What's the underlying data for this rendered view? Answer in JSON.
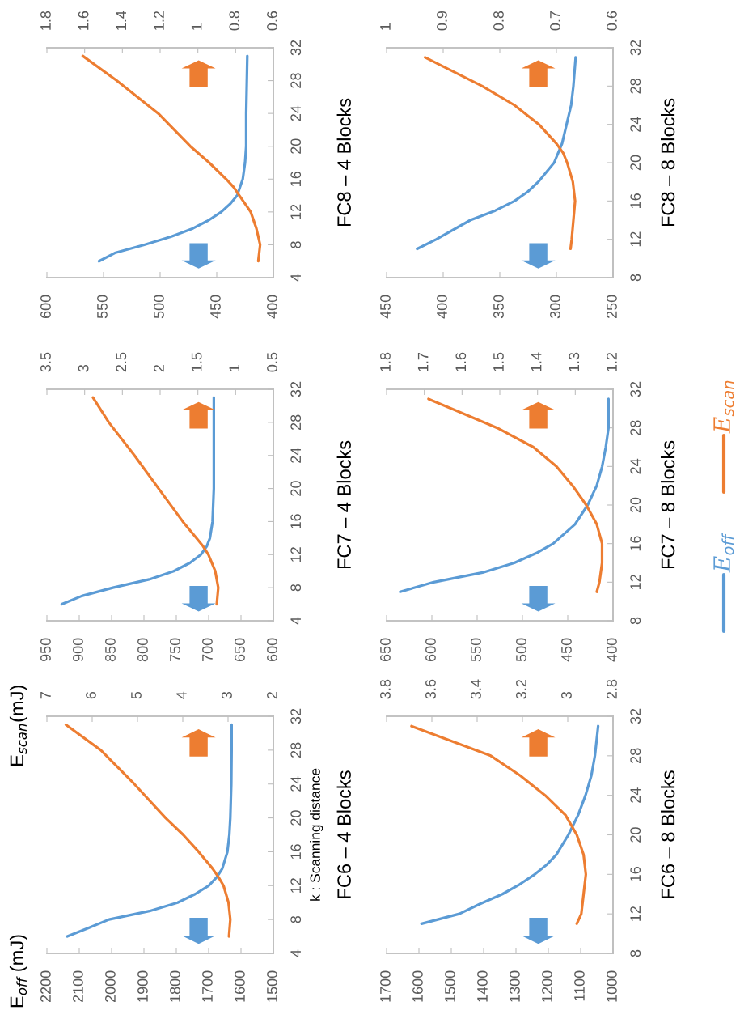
{
  "chart_data": [
    {
      "type": "line",
      "orientation": "horizontal",
      "annotations": [
        "FC6 – 4 Blocks",
        "E$_{off}$ (mJ)"
      ],
      "ylabel": "k : Scanning distance",
      "x2label": "E$_{scan}$(mJ)",
      "legend": "right",
      "grid": false,
      "marker": "none",
      "line_style": "solid",
      "ylim": [
        4,
        32
      ],
      "yticks": [
        4,
        8,
        12,
        16,
        20,
        24,
        28,
        32
      ],
      "xlim": [
        2200,
        1500
      ],
      "xticks": [
        2200,
        2100,
        2000,
        1900,
        1800,
        1700,
        1600,
        1500
      ],
      "x2lim": [
        7,
        2
      ],
      "x2ticks": [
        7,
        6,
        5,
        4,
        3,
        2
      ],
      "series": [
        {
          "name": "E$_{off}$",
          "color": "#5b9bd5",
          "x": [
            6,
            7,
            8,
            9,
            10,
            11,
            12,
            13,
            14,
            16,
            18,
            20,
            24,
            28,
            31
          ],
          "values": [
            2137,
            2071,
            2008,
            1883,
            1796,
            1742,
            1700,
            1675,
            1658,
            1642,
            1636,
            1633,
            1630,
            1629,
            1629
          ]
        },
        {
          "name": "E$_{scan}$",
          "color": "#ed7d31",
          "axis": "x2",
          "x": [
            6,
            8,
            10,
            12,
            13,
            14,
            16,
            18,
            20,
            24,
            28,
            31
          ],
          "values": [
            2.98,
            2.95,
            2.99,
            3.1,
            3.21,
            3.34,
            3.65,
            3.99,
            4.38,
            5.07,
            5.81,
            6.58
          ]
        }
      ]
    },
    {
      "type": "line",
      "orientation": "horizontal",
      "annotations": [
        "FC7 – 4 Blocks"
      ],
      "grid": false,
      "marker": "none",
      "line_style": "solid",
      "ylim": [
        4,
        32
      ],
      "yticks": [
        4,
        8,
        12,
        16,
        20,
        24,
        28,
        32
      ],
      "xlim": [
        950,
        600
      ],
      "xticks": [
        950,
        900,
        850,
        800,
        750,
        700,
        650,
        600
      ],
      "x2lim": [
        3.5,
        0.5
      ],
      "x2ticks": [
        3.5,
        3,
        2.5,
        2,
        1.5,
        1,
        0.5
      ],
      "series": [
        {
          "color": "#5b9bd5",
          "x": [
            6,
            7,
            8,
            9,
            10,
            11,
            12,
            13,
            14,
            16,
            20,
            24,
            28,
            31
          ],
          "values": [
            927,
            896,
            848,
            792,
            754,
            729,
            712,
            703,
            698,
            694,
            692,
            692,
            692,
            692
          ]
        },
        {
          "color": "#ed7d31",
          "axis": "x2",
          "x": [
            6,
            8,
            10,
            12,
            13,
            14,
            16,
            20,
            24,
            28,
            31
          ],
          "values": [
            1.25,
            1.23,
            1.27,
            1.36,
            1.43,
            1.52,
            1.7,
            2.02,
            2.34,
            2.68,
            2.89
          ]
        }
      ]
    },
    {
      "type": "line",
      "orientation": "horizontal",
      "annotations": [
        "FC8 – 4 Blocks"
      ],
      "grid": false,
      "marker": "none",
      "line_style": "solid",
      "ylim": [
        4,
        32
      ],
      "yticks": [
        4,
        8,
        12,
        16,
        20,
        24,
        28,
        32
      ],
      "xlim": [
        600,
        400
      ],
      "xticks": [
        600,
        550,
        500,
        450,
        400
      ],
      "x2lim": [
        1.8,
        0.6
      ],
      "x2ticks": [
        1.8,
        1.6,
        1.4,
        1.2,
        1,
        0.8,
        0.6
      ],
      "series": [
        {
          "color": "#5b9bd5",
          "x": [
            6,
            7,
            8,
            9,
            10,
            11,
            12,
            13,
            14,
            16,
            18,
            20,
            24,
            31
          ],
          "values": [
            554,
            540,
            514,
            490,
            471,
            457,
            446,
            438,
            432,
            427,
            425,
            424,
            424,
            423
          ]
        },
        {
          "color": "#ed7d31",
          "axis": "x2",
          "x": [
            6,
            8,
            10,
            12,
            14,
            15,
            16,
            18,
            20,
            24,
            28,
            31
          ],
          "values": [
            0.68,
            0.67,
            0.69,
            0.72,
            0.78,
            0.81,
            0.85,
            0.94,
            1.04,
            1.21,
            1.43,
            1.61
          ]
        }
      ]
    },
    {
      "type": "line",
      "orientation": "horizontal",
      "annotations": [
        "FC6 – 8 Blocks"
      ],
      "grid": false,
      "marker": "none",
      "line_style": "solid",
      "ylim": [
        8,
        32
      ],
      "yticks": [
        8,
        12,
        16,
        20,
        24,
        28,
        32
      ],
      "xlim": [
        1700,
        1000
      ],
      "xticks": [
        1700,
        1600,
        1500,
        1400,
        1300,
        1200,
        1100,
        1000
      ],
      "x2lim": [
        3.8,
        2.8
      ],
      "x2ticks": [
        3.8,
        3.6,
        3.4,
        3.2,
        3,
        2.8
      ],
      "series": [
        {
          "color": "#5b9bd5",
          "x": [
            11,
            12,
            13,
            14,
            15,
            16,
            17,
            18,
            20,
            22,
            24,
            26,
            28,
            31
          ],
          "values": [
            1592,
            1475,
            1412,
            1342,
            1288,
            1242,
            1204,
            1175,
            1138,
            1108,
            1085,
            1067,
            1056,
            1046
          ]
        },
        {
          "color": "#ed7d31",
          "axis": "x2",
          "x": [
            11,
            12,
            14,
            16,
            18,
            20,
            22,
            24,
            26,
            28,
            31
          ],
          "values": [
            2.96,
            2.94,
            2.93,
            2.92,
            2.93,
            2.96,
            3.01,
            3.1,
            3.21,
            3.34,
            3.69
          ]
        }
      ]
    },
    {
      "type": "line",
      "orientation": "horizontal",
      "annotations": [
        "FC7 – 8 Blocks"
      ],
      "grid": false,
      "marker": "none",
      "line_style": "solid",
      "ylim": [
        8,
        32
      ],
      "yticks": [
        8,
        12,
        16,
        20,
        24,
        28,
        32
      ],
      "xlim": [
        650,
        400
      ],
      "xticks": [
        650,
        600,
        550,
        500,
        450,
        400
      ],
      "x2lim": [
        1.8,
        1.2
      ],
      "x2ticks": [
        1.8,
        1.7,
        1.6,
        1.5,
        1.4,
        1.3,
        1.2
      ],
      "series": [
        {
          "color": "#5b9bd5",
          "x": [
            11,
            12,
            13,
            14,
            15,
            16,
            18,
            20,
            22,
            24,
            26,
            28,
            31
          ],
          "values": [
            635,
            598,
            544,
            509,
            485,
            466,
            442,
            428,
            418,
            412,
            408,
            405,
            405
          ]
        },
        {
          "color": "#ed7d31",
          "axis": "x2",
          "x": [
            11,
            12,
            14,
            16,
            18,
            20,
            22,
            24,
            26,
            28,
            31
          ],
          "values": [
            1.243,
            1.236,
            1.229,
            1.229,
            1.243,
            1.271,
            1.307,
            1.35,
            1.411,
            1.507,
            1.689
          ]
        }
      ]
    },
    {
      "type": "line",
      "orientation": "horizontal",
      "annotations": [
        "FC8 – 8 Blocks"
      ],
      "grid": false,
      "marker": "none",
      "line_style": "solid",
      "ylim": [
        8,
        32
      ],
      "yticks": [
        8,
        12,
        16,
        20,
        24,
        28,
        32
      ],
      "xlim": [
        450,
        250
      ],
      "xticks": [
        450,
        400,
        350,
        300,
        250
      ],
      "x2lim": [
        1,
        0.6
      ],
      "x2ticks": [
        1,
        0.9,
        0.8,
        0.7,
        0.6
      ],
      "series": [
        {
          "color": "#5b9bd5",
          "x": [
            11,
            12,
            14,
            15,
            16,
            17,
            18,
            20,
            22,
            24,
            26,
            28,
            31
          ],
          "values": [
            423,
            406,
            376,
            354,
            337,
            325,
            316,
            302,
            295,
            291,
            287,
            285,
            283
          ]
        },
        {
          "color": "#ed7d31",
          "axis": "x2",
          "x": [
            11,
            12,
            14,
            16,
            18,
            20,
            21,
            22,
            24,
            26,
            28,
            31
          ],
          "values": [
            0.675,
            0.673,
            0.67,
            0.667,
            0.671,
            0.681,
            0.688,
            0.7,
            0.731,
            0.774,
            0.831,
            0.932
          ]
        }
      ]
    }
  ]
}
